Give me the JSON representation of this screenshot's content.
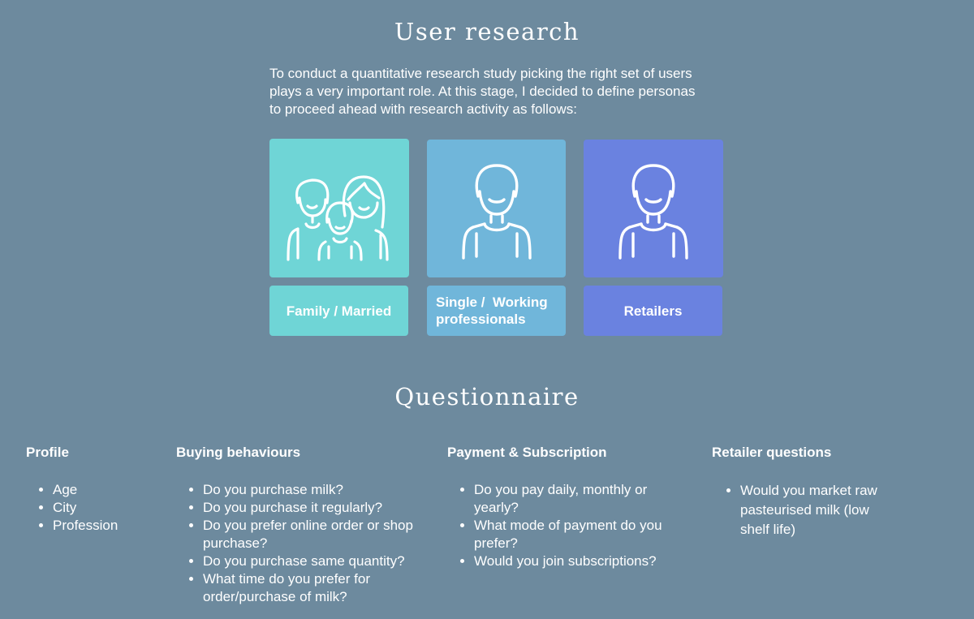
{
  "user_research": {
    "title": "User research",
    "intro": "To conduct a quantitative research study picking the right set of users plays a very important role. At this stage, I decided to define personas to proceed ahead with research activity as follows:",
    "personas": [
      {
        "label": "Family / Married",
        "icon": "family-icon",
        "color": "#6fd5d6"
      },
      {
        "label": "Single /  Working professionals",
        "icon": "person-icon",
        "color": "#70b6da"
      },
      {
        "label": "Retailers",
        "icon": "person-icon",
        "color": "#6a82e0"
      }
    ]
  },
  "questionnaire": {
    "title": "Questionnaire",
    "columns": [
      {
        "heading": "Profile",
        "items": [
          "Age",
          "City",
          "Profession"
        ]
      },
      {
        "heading": "Buying behaviours",
        "items": [
          "Do you purchase milk?",
          "Do you purchase it regularly?",
          "Do you prefer online order or shop purchase?",
          "Do you purchase same quantity?",
          "What time do you prefer for order/purchase of milk?"
        ]
      },
      {
        "heading": "Payment & Subscription",
        "items": [
          "Do you pay daily, monthly or yearly?",
          "What mode of payment do you prefer?",
          "Would you join subscriptions?"
        ]
      },
      {
        "heading": "Retailer questions",
        "items": [
          "Would you market raw pasteurised milk (low shelf life)"
        ]
      }
    ]
  }
}
